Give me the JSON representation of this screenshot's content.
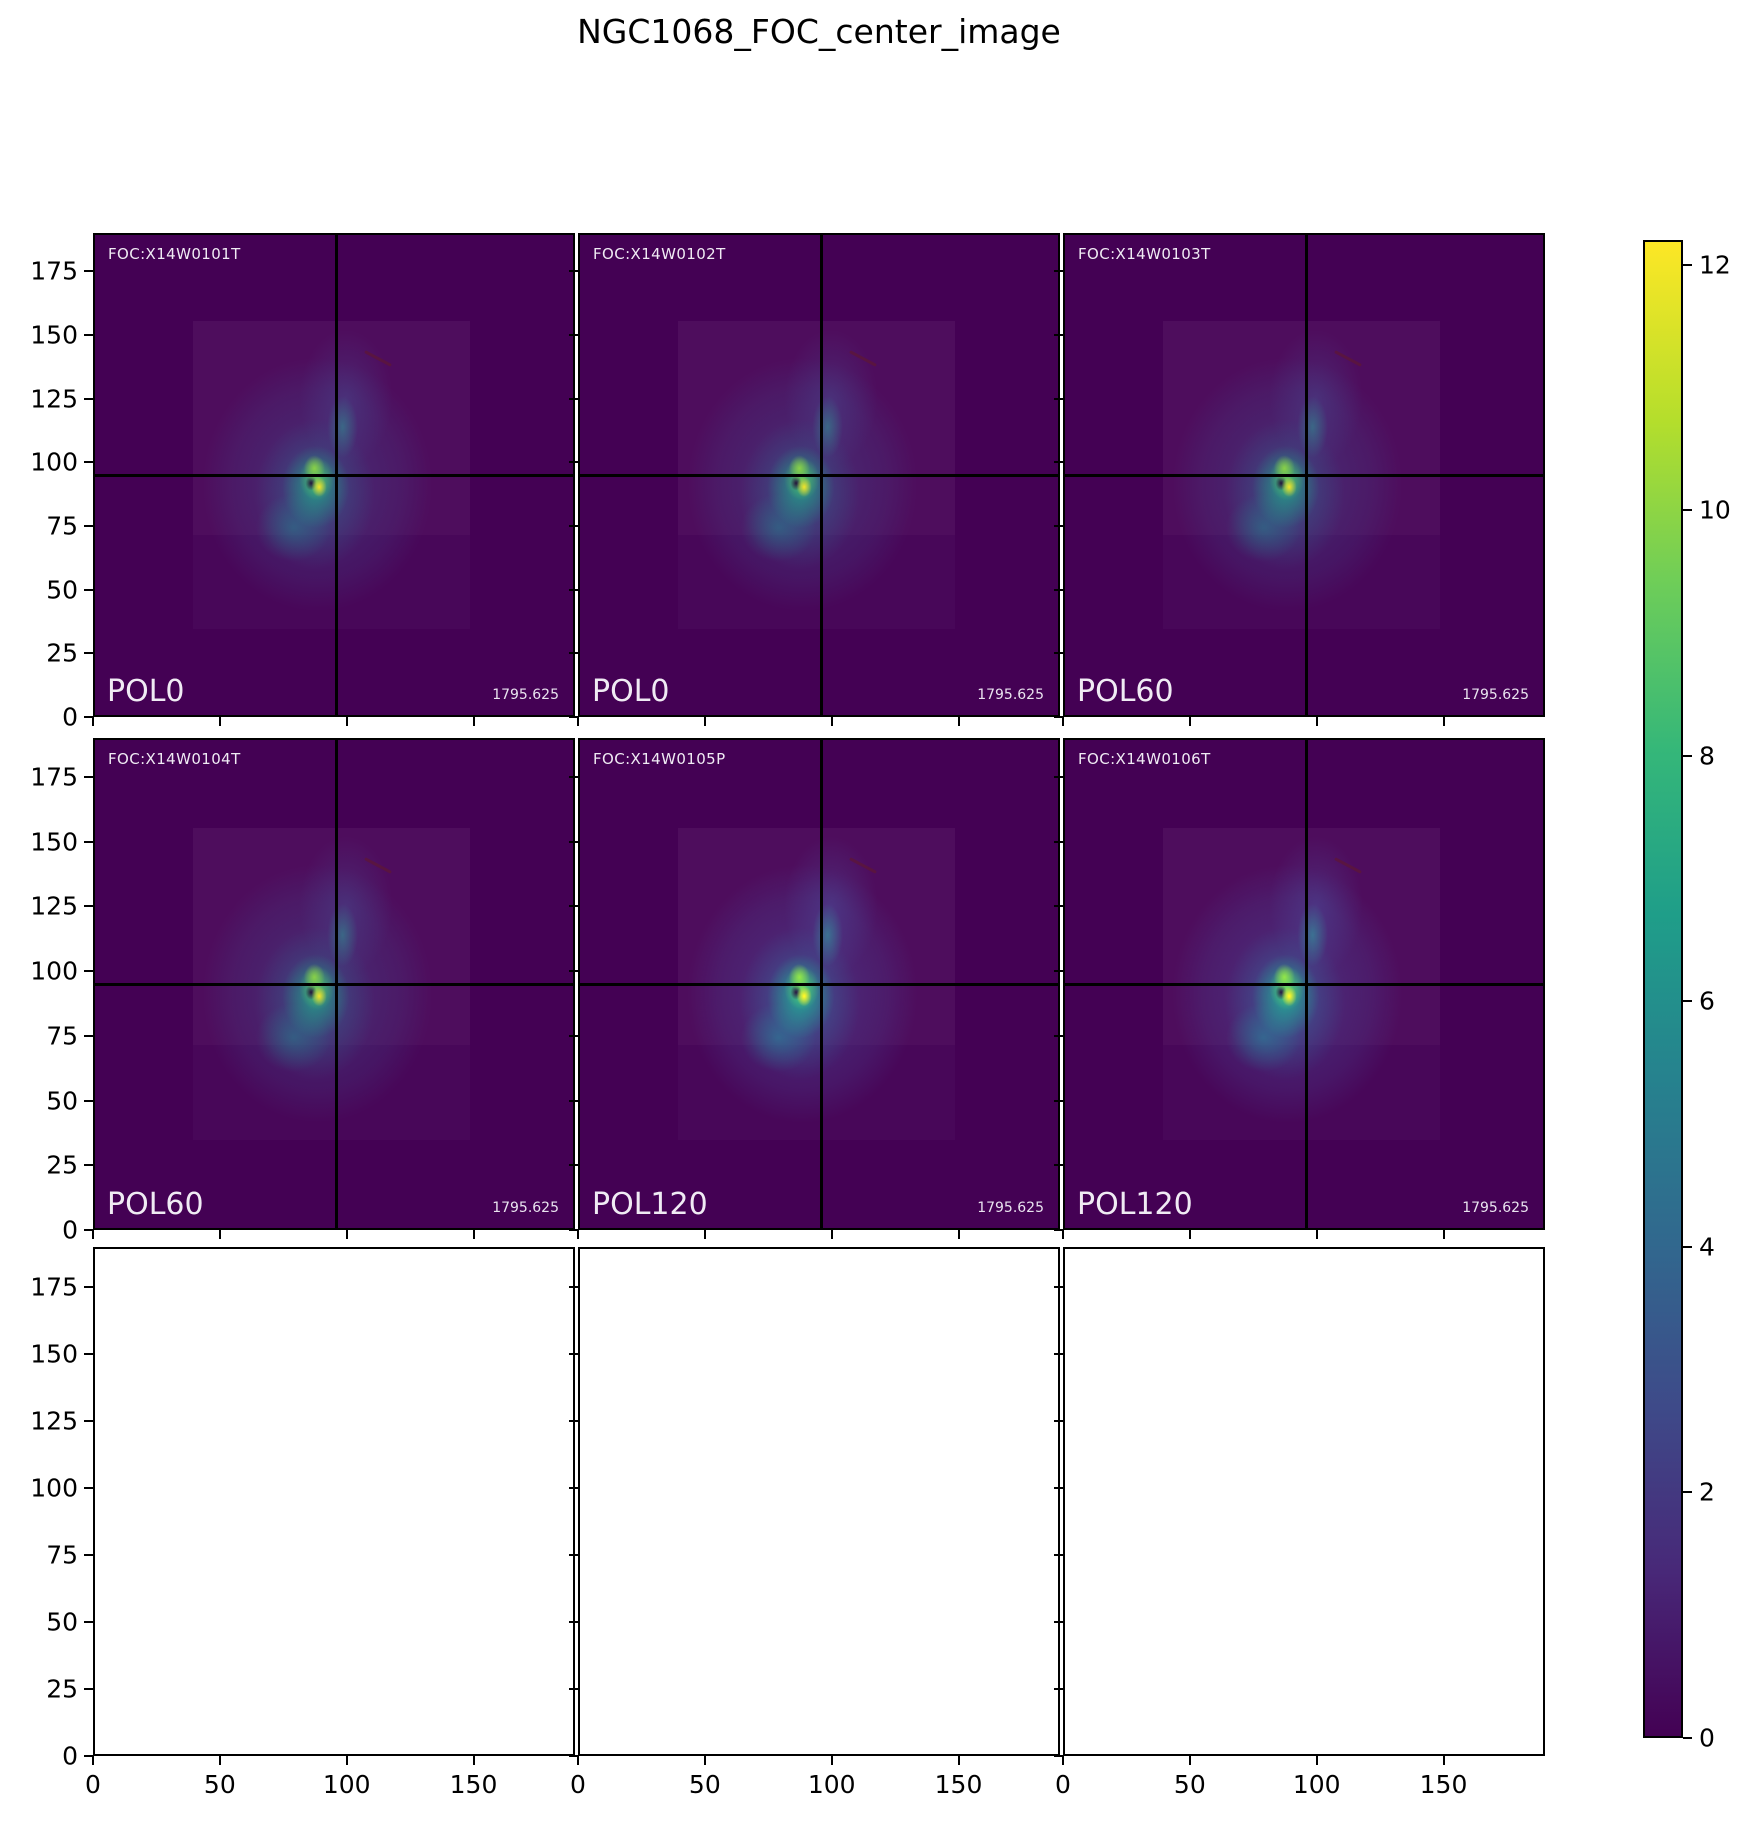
{
  "title": "NGC1068_FOC_center_image",
  "panels": [
    {
      "foc": "FOC:X14W0101T",
      "pol": "POL0",
      "exposure": "1795.625",
      "variant": "normal"
    },
    {
      "foc": "FOC:X14W0102T",
      "pol": "POL0",
      "exposure": "1795.625",
      "variant": "normal"
    },
    {
      "foc": "FOC:X14W0103T",
      "pol": "POL60",
      "exposure": "1795.625",
      "variant": "normal"
    },
    {
      "foc": "FOC:X14W0104T",
      "pol": "POL60",
      "exposure": "1795.625",
      "variant": "normal"
    },
    {
      "foc": "FOC:X14W0105P",
      "pol": "POL120",
      "exposure": "1795.625",
      "variant": "bright"
    },
    {
      "foc": "FOC:X14W0106T",
      "pol": "POL120",
      "exposure": "1795.625",
      "variant": "bright"
    }
  ],
  "axes": {
    "y_tick_labels": [
      "175",
      "150",
      "125",
      "100",
      "75",
      "50",
      "25",
      "0"
    ],
    "x_tick_labels": [
      "0",
      "50",
      "100",
      "150"
    ]
  },
  "colorbar": {
    "tick_labels": [
      "12",
      "10",
      "8",
      "6",
      "4",
      "2",
      "0"
    ],
    "colormap": "viridis"
  },
  "chart_data": {
    "type": "heatmap",
    "title": "NGC1068_FOC_center_image",
    "layout": "3x3 grid of shared-axis image panels; bottom row is empty axes",
    "x_range": [
      0,
      190
    ],
    "y_range": [
      0,
      190
    ],
    "x_ticks": [
      0,
      50,
      100,
      150
    ],
    "y_ticks": [
      0,
      25,
      50,
      75,
      100,
      125,
      150,
      175
    ],
    "crosshair_data_coords": [
      95,
      95
    ],
    "colorbar": {
      "min": 0,
      "max": 12.2,
      "ticks": [
        0,
        2,
        4,
        6,
        8,
        10,
        12
      ],
      "colormap": "viridis"
    },
    "panels": [
      {
        "row": 1,
        "col": 1,
        "dataset": "FOC:X14W0101T",
        "polarizer": "POL0",
        "exposure_s": 1795.625
      },
      {
        "row": 1,
        "col": 2,
        "dataset": "FOC:X14W0102T",
        "polarizer": "POL0",
        "exposure_s": 1795.625
      },
      {
        "row": 1,
        "col": 3,
        "dataset": "FOC:X14W0103T",
        "polarizer": "POL60",
        "exposure_s": 1795.625
      },
      {
        "row": 2,
        "col": 1,
        "dataset": "FOC:X14W0104T",
        "polarizer": "POL60",
        "exposure_s": 1795.625
      },
      {
        "row": 2,
        "col": 2,
        "dataset": "FOC:X14W0105P",
        "polarizer": "POL120",
        "exposure_s": 1795.625
      },
      {
        "row": 2,
        "col": 3,
        "dataset": "FOC:X14W0106T",
        "polarizer": "POL120",
        "exposure_s": 1795.625
      }
    ],
    "empty_panels": [
      {
        "row": 3,
        "col": 1
      },
      {
        "row": 3,
        "col": 2
      },
      {
        "row": 3,
        "col": 3
      }
    ]
  }
}
